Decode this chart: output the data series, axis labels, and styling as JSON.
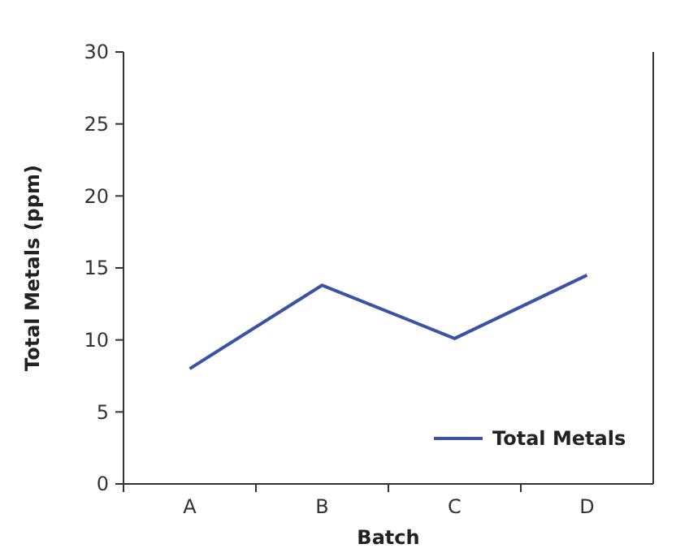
{
  "chart_data": {
    "type": "line",
    "xlabel": "Batch",
    "ylabel": "Total Metals (ppm)",
    "categories": [
      "A",
      "B",
      "C",
      "D"
    ],
    "series": [
      {
        "name": "Total Metals",
        "color": "#3a53a4",
        "values": [
          8,
          13.8,
          10.1,
          14.5
        ]
      }
    ],
    "ylim": [
      0,
      30
    ],
    "yticks": [
      0,
      5,
      10,
      15,
      20,
      25,
      30
    ],
    "legend": "bottom right",
    "grid": false,
    "marker": "none",
    "line_style": "solid"
  }
}
